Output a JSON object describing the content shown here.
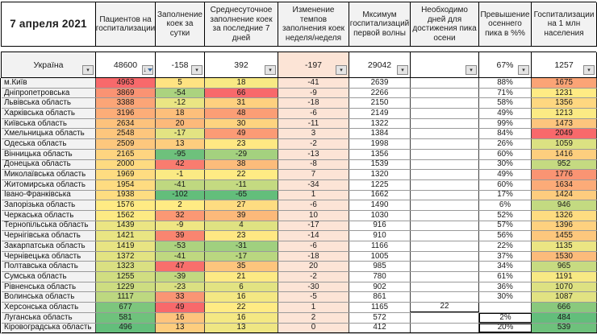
{
  "columns": [
    {
      "label": "7 апреля 2021"
    },
    {
      "label": "Пациентов на госпитализации"
    },
    {
      "label": "Заполнение коек за сутки"
    },
    {
      "label": "Среднесуточное заполнение коек за последние 7 дней"
    },
    {
      "label": "Изменение темпов заполнения коек неделя/неделя"
    },
    {
      "label": "Мксимум госпитализаций первой волны"
    },
    {
      "label": "Необходимо дней для достижения пика осени"
    },
    {
      "label": "Превышение осеннего пика в %%"
    },
    {
      "label": "Госпитализации на 1 млн населения"
    }
  ],
  "icons": {
    "dropdown_glyph": "▾",
    "sort_arrow_glyph": "↓"
  },
  "colors": {
    "scale_min_green": "#63BE7B",
    "scale_mid_yellow": "#FFEB84",
    "scale_max_red": "#F8696B",
    "week_change_bg": "#FCE4D6",
    "header_bg": "#F2F2F2",
    "name_col_bg": "#F2F2F2"
  },
  "color_scales": {
    "patients": {
      "min": 496,
      "mid": 1576,
      "max": 4963
    },
    "daily": {
      "min": -102,
      "mid": 2,
      "max": 49
    },
    "avg7": {
      "min": -65,
      "mid": 22,
      "max": 66
    },
    "permln": {
      "min": 484,
      "mid": 1231,
      "max": 2049
    }
  },
  "totals": {
    "name": "Україна",
    "patients": 48600,
    "daily": -158,
    "avg7": 392,
    "change": -197,
    "wave1": 29042,
    "days": "",
    "excess": "67%",
    "permln": 1257
  },
  "rows": [
    {
      "name": "м.Київ",
      "patients": 4963,
      "daily": 5,
      "avg7": 18,
      "change": -41,
      "wave1": 2639,
      "days": "",
      "excess": "88%",
      "permln": 1675
    },
    {
      "name": "Дніпропетровська",
      "patients": 3869,
      "daily": -54,
      "avg7": 66,
      "change": -9,
      "wave1": 2266,
      "days": "",
      "excess": "71%",
      "permln": 1231
    },
    {
      "name": "Львівська область",
      "patients": 3388,
      "daily": -12,
      "avg7": 31,
      "change": -18,
      "wave1": 2150,
      "days": "",
      "excess": "58%",
      "permln": 1356
    },
    {
      "name": "Харківська область",
      "patients": 3196,
      "daily": 18,
      "avg7": 48,
      "change": -6,
      "wave1": 2149,
      "days": "",
      "excess": "49%",
      "permln": 1213
    },
    {
      "name": "Київська область",
      "patients": 2634,
      "daily": 20,
      "avg7": 30,
      "change": -11,
      "wave1": 1322,
      "days": "",
      "excess": "99%",
      "permln": 1473
    },
    {
      "name": "Хмельницька область",
      "patients": 2548,
      "daily": -17,
      "avg7": 49,
      "change": 3,
      "wave1": 1384,
      "days": "",
      "excess": "84%",
      "permln": 2049
    },
    {
      "name": "Одеська область",
      "patients": 2509,
      "daily": 13,
      "avg7": 23,
      "change": -2,
      "wave1": 1998,
      "days": "",
      "excess": "26%",
      "permln": 1059
    },
    {
      "name": "Вінницька область",
      "patients": 2165,
      "daily": -95,
      "avg7": -29,
      "change": -13,
      "wave1": 1356,
      "days": "",
      "excess": "60%",
      "permln": 1416
    },
    {
      "name": "Донецька область",
      "patients": 2000,
      "daily": 42,
      "avg7": 38,
      "change": -8,
      "wave1": 1539,
      "days": "",
      "excess": "30%",
      "permln": 952
    },
    {
      "name": "Миколаївська область",
      "patients": 1969,
      "daily": -1,
      "avg7": 22,
      "change": 7,
      "wave1": 1320,
      "days": "",
      "excess": "49%",
      "permln": 1776
    },
    {
      "name": "Житомирська область",
      "patients": 1954,
      "daily": -41,
      "avg7": -11,
      "change": -34,
      "wave1": 1225,
      "days": "",
      "excess": "60%",
      "permln": 1634
    },
    {
      "name": "Івано-Франківська",
      "patients": 1938,
      "daily": -102,
      "avg7": -65,
      "change": 1,
      "wave1": 1662,
      "days": "",
      "excess": "17%",
      "permln": 1424
    },
    {
      "name": "Запорізька область",
      "patients": 1576,
      "daily": 2,
      "avg7": 27,
      "change": -6,
      "wave1": 1490,
      "days": "",
      "excess": "6%",
      "permln": 946
    },
    {
      "name": "Черкаська область",
      "patients": 1562,
      "daily": 32,
      "avg7": 39,
      "change": 10,
      "wave1": 1030,
      "days": "",
      "excess": "52%",
      "permln": 1326
    },
    {
      "name": "Тернопільська область",
      "patients": 1439,
      "daily": -9,
      "avg7": 4,
      "change": -17,
      "wave1": 916,
      "days": "",
      "excess": "57%",
      "permln": 1396
    },
    {
      "name": "Чернігівська область",
      "patients": 1421,
      "daily": 39,
      "avg7": 23,
      "change": -14,
      "wave1": 910,
      "days": "",
      "excess": "56%",
      "permln": 1455
    },
    {
      "name": "Закарпатська область",
      "patients": 1419,
      "daily": -53,
      "avg7": -31,
      "change": -6,
      "wave1": 1166,
      "days": "",
      "excess": "22%",
      "permln": 1135
    },
    {
      "name": "Чернівецька область",
      "patients": 1372,
      "daily": -41,
      "avg7": -17,
      "change": -18,
      "wave1": 1005,
      "days": "",
      "excess": "37%",
      "permln": 1530
    },
    {
      "name": "Полтавська область",
      "patients": 1323,
      "daily": 47,
      "avg7": 35,
      "change": 20,
      "wave1": 985,
      "days": "",
      "excess": "34%",
      "permln": 965
    },
    {
      "name": "Сумська область",
      "patients": 1255,
      "daily": -39,
      "avg7": 21,
      "change": -2,
      "wave1": 780,
      "days": "",
      "excess": "61%",
      "permln": 1191
    },
    {
      "name": "Рівненська область",
      "patients": 1229,
      "daily": -23,
      "avg7": 6,
      "change": -30,
      "wave1": 902,
      "days": "",
      "excess": "36%",
      "permln": 1070
    },
    {
      "name": "Волинська область",
      "patients": 1117,
      "daily": 33,
      "avg7": 16,
      "change": -5,
      "wave1": 861,
      "days": "",
      "excess": "30%",
      "permln": 1087
    },
    {
      "name": "Херсонська область",
      "patients": 677,
      "daily": 49,
      "avg7": 22,
      "change": 1,
      "wave1": 1165,
      "days": "22",
      "excess": "",
      "permln": 666,
      "days_box": true
    },
    {
      "name": "Луганська область",
      "patients": 581,
      "daily": 16,
      "avg7": 16,
      "change": 2,
      "wave1": 572,
      "days": "",
      "excess": "2%",
      "permln": 484,
      "excess_box": true
    },
    {
      "name": "Кіровоградська область",
      "patients": 496,
      "daily": 13,
      "avg7": 13,
      "change": 0,
      "wave1": 412,
      "days": "",
      "excess": "20%",
      "permln": 539,
      "excess_box": true
    }
  ]
}
